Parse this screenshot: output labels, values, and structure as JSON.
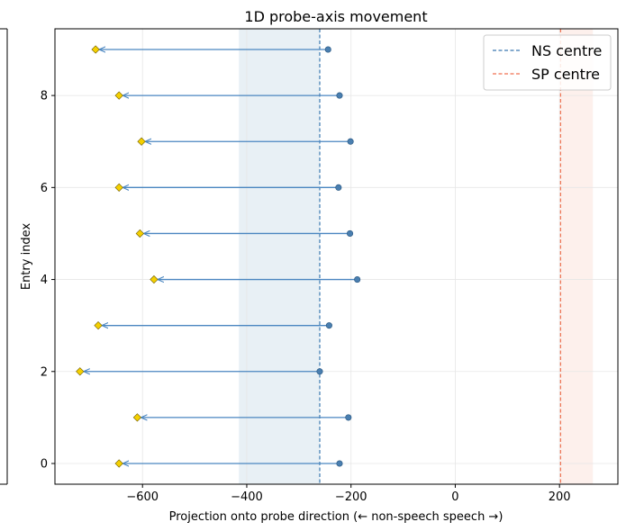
{
  "chart_data": {
    "type": "scatter",
    "title": "1D probe-axis movement",
    "xlabel": "Projection onto probe direction  (← non-speech    speech →)",
    "ylabel": "Entry index",
    "xlim": [
      -768,
      312
    ],
    "ylim": [
      -0.45,
      9.45
    ],
    "xticks": [
      -600,
      -400,
      -200,
      0,
      200
    ],
    "xtick_labels": [
      "−600",
      "−400",
      "−200",
      "0",
      "200"
    ],
    "yticks": [
      0,
      2,
      4,
      6,
      8
    ],
    "ytick_labels": [
      "0",
      "2",
      "4",
      "6",
      "8"
    ],
    "grid": true,
    "legend_position": "top-right",
    "series": [
      {
        "name": "",
        "role": "start",
        "marker": "circle",
        "color": "#4a7fb0",
        "points": [
          {
            "x": -222,
            "y": 0
          },
          {
            "x": -205,
            "y": 1
          },
          {
            "x": -260,
            "y": 2
          },
          {
            "x": -242,
            "y": 3
          },
          {
            "x": -188,
            "y": 4
          },
          {
            "x": -202,
            "y": 5
          },
          {
            "x": -224,
            "y": 6
          },
          {
            "x": -201,
            "y": 7
          },
          {
            "x": -222,
            "y": 8
          },
          {
            "x": -244,
            "y": 9
          }
        ]
      },
      {
        "name": "",
        "role": "end",
        "marker": "diamond",
        "color": "#f5d000",
        "points": [
          {
            "x": -645,
            "y": 0
          },
          {
            "x": -610,
            "y": 1
          },
          {
            "x": -720,
            "y": 2
          },
          {
            "x": -685,
            "y": 3
          },
          {
            "x": -578,
            "y": 4
          },
          {
            "x": -605,
            "y": 5
          },
          {
            "x": -645,
            "y": 6
          },
          {
            "x": -602,
            "y": 7
          },
          {
            "x": -645,
            "y": 8
          },
          {
            "x": -690,
            "y": 9
          }
        ]
      }
    ],
    "reference_lines": [
      {
        "name": "NS centre",
        "x": -260,
        "color": "#3a78b0",
        "band": [
          -415,
          -260
        ]
      },
      {
        "name": "SP centre",
        "x": 202,
        "color": "#f07050",
        "band": [
          202,
          264
        ]
      }
    ],
    "colors": {
      "arrow": "#4a86c0",
      "ns_band": "#e8f0f5",
      "sp_band": "#fdf0ec"
    }
  }
}
